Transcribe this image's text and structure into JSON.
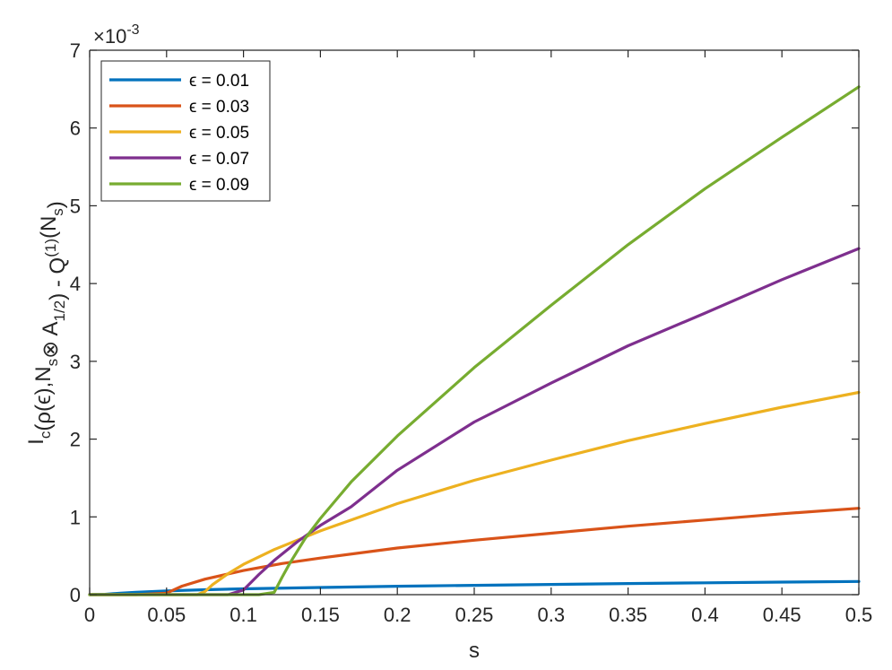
{
  "chart_data": {
    "type": "line",
    "xlabel": "s",
    "ylabel": {
      "parts": [
        {
          "text": "I",
          "sub": "c"
        },
        {
          "text": "(ρ(ϵ),N",
          "sub": "s"
        },
        {
          "text": "⊗ A",
          "sub": "1/2"
        },
        {
          "text": ") - Q",
          "sup": "(1)"
        },
        {
          "text": "(N",
          "sub": "s"
        },
        {
          "text": ")"
        }
      ]
    },
    "y_exponent_label": "×10",
    "y_exponent": "-3",
    "xlim": [
      0,
      0.5
    ],
    "ylim": [
      0,
      7
    ],
    "x_ticks": [
      0,
      0.05,
      0.1,
      0.15,
      0.2,
      0.25,
      0.3,
      0.35,
      0.4,
      0.45,
      0.5
    ],
    "x_tick_labels": [
      "0",
      "0.05",
      "0.1",
      "0.15",
      "0.2",
      "0.25",
      "0.3",
      "0.35",
      "0.4",
      "0.45",
      "0.5"
    ],
    "y_ticks": [
      0,
      1,
      2,
      3,
      4,
      5,
      6,
      7
    ],
    "y_tick_labels": [
      "0",
      "1",
      "2",
      "3",
      "4",
      "5",
      "6",
      "7"
    ],
    "grid": false,
    "legend_position": "top-left",
    "series": [
      {
        "name": "ϵ = 0.01",
        "color": "#0072BD",
        "x": [
          0,
          0.01,
          0.02,
          0.03,
          0.05,
          0.075,
          0.1,
          0.15,
          0.2,
          0.25,
          0.3,
          0.35,
          0.4,
          0.45,
          0.5
        ],
        "y": [
          0,
          0.005,
          0.02,
          0.03,
          0.048,
          0.063,
          0.075,
          0.092,
          0.108,
          0.12,
          0.132,
          0.143,
          0.152,
          0.161,
          0.17
        ]
      },
      {
        "name": "ϵ = 0.03",
        "color": "#D95319",
        "x": [
          0,
          0.03,
          0.05,
          0.06,
          0.075,
          0.1,
          0.125,
          0.15,
          0.2,
          0.25,
          0.3,
          0.35,
          0.4,
          0.45,
          0.5
        ],
        "y": [
          0,
          0,
          0.02,
          0.11,
          0.2,
          0.31,
          0.4,
          0.47,
          0.6,
          0.7,
          0.79,
          0.88,
          0.96,
          1.04,
          1.11
        ]
      },
      {
        "name": "ϵ = 0.05",
        "color": "#EDB120",
        "x": [
          0,
          0.07,
          0.075,
          0.08,
          0.09,
          0.1,
          0.12,
          0.15,
          0.2,
          0.25,
          0.3,
          0.35,
          0.4,
          0.45,
          0.5
        ],
        "y": [
          0,
          0,
          0.04,
          0.13,
          0.27,
          0.39,
          0.58,
          0.82,
          1.17,
          1.47,
          1.73,
          1.98,
          2.2,
          2.41,
          2.6
        ]
      },
      {
        "name": "ϵ = 0.07",
        "color": "#7E2F8E",
        "x": [
          0,
          0.09,
          0.1,
          0.11,
          0.12,
          0.135,
          0.15,
          0.17,
          0.2,
          0.25,
          0.3,
          0.35,
          0.4,
          0.45,
          0.5
        ],
        "y": [
          0,
          0,
          0.06,
          0.26,
          0.44,
          0.68,
          0.89,
          1.13,
          1.6,
          2.22,
          2.72,
          3.2,
          3.62,
          4.05,
          4.45
        ]
      },
      {
        "name": "ϵ = 0.09",
        "color": "#77AC30",
        "x": [
          0,
          0.11,
          0.12,
          0.125,
          0.13,
          0.14,
          0.15,
          0.17,
          0.2,
          0.25,
          0.3,
          0.35,
          0.4,
          0.45,
          0.5
        ],
        "y": [
          0,
          0,
          0.03,
          0.22,
          0.4,
          0.72,
          0.98,
          1.45,
          2.04,
          2.92,
          3.72,
          4.5,
          5.22,
          5.88,
          6.53
        ]
      }
    ]
  }
}
